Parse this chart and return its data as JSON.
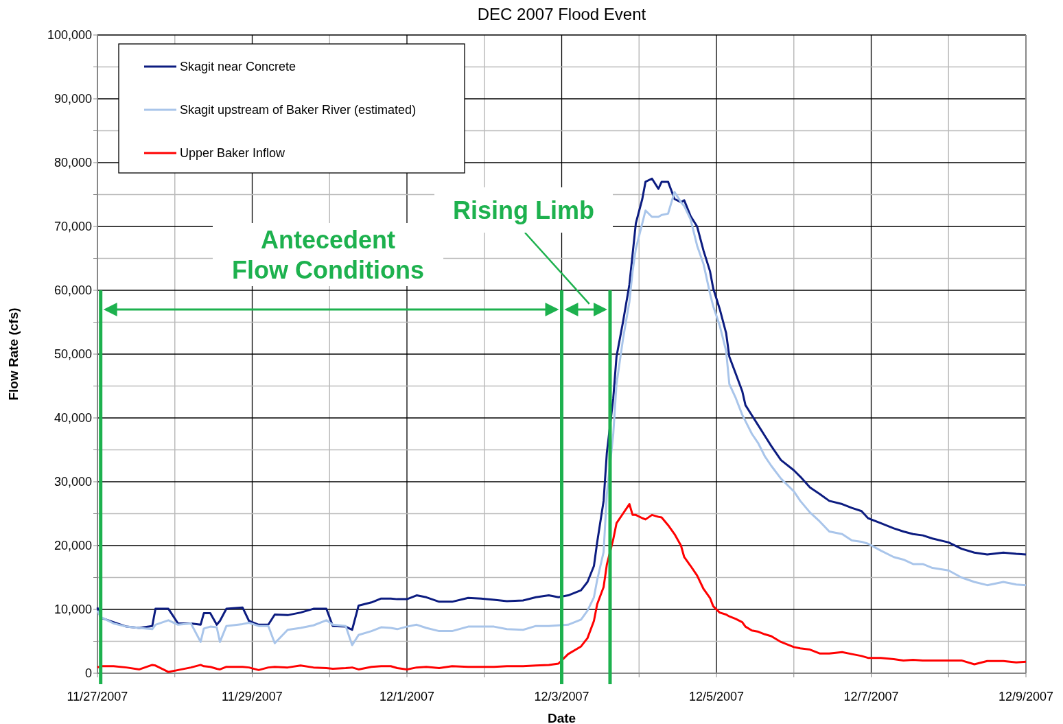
{
  "chart_data": {
    "type": "line",
    "title": "DEC 2007 Flood Event",
    "xlabel": "Date",
    "ylabel": "Flow Rate  (cfs)",
    "x": [
      "2007-11-27T00:00",
      "2007-11-27T01:00",
      "2007-11-27T05:00",
      "2007-11-27T09:00",
      "2007-11-27T13:00",
      "2007-11-27T17:00",
      "2007-11-27T18:00",
      "2007-11-27T22:00",
      "2007-11-28T01:00",
      "2007-11-28T05:00",
      "2007-11-28T08:00",
      "2007-11-28T09:00",
      "2007-11-28T11:00",
      "2007-11-28T13:00",
      "2007-11-28T14:00",
      "2007-11-28T16:00",
      "2007-11-28T21:00",
      "2007-11-28T23:00",
      "2007-11-29T02:00",
      "2007-11-29T05:00",
      "2007-11-29T07:00",
      "2007-11-29T11:00",
      "2007-11-29T15:00",
      "2007-11-29T19:00",
      "2007-11-29T23:00",
      "2007-11-30T01:00",
      "2007-11-30T05:00",
      "2007-11-30T07:00",
      "2007-11-30T09:00",
      "2007-11-30T13:00",
      "2007-11-30T16:00",
      "2007-11-30T19:00",
      "2007-11-30T21:00",
      "2007-12-01T00:00",
      "2007-12-01T03:00",
      "2007-12-01T06:00",
      "2007-12-01T10:00",
      "2007-12-01T14:00",
      "2007-12-01T19:00",
      "2007-12-01T23:00",
      "2007-12-02T03:00",
      "2007-12-02T07:00",
      "2007-12-02T12:00",
      "2007-12-02T16:00",
      "2007-12-02T20:00",
      "2007-12-02T23:00",
      "2007-12-03T02:00",
      "2007-12-03T06:00",
      "2007-12-03T08:00",
      "2007-12-03T10:00",
      "2007-12-03T11:00",
      "2007-12-03T13:00",
      "2007-12-03T14:00",
      "2007-12-03T16:00",
      "2007-12-03T17:00",
      "2007-12-03T19:00",
      "2007-12-03T21:00",
      "2007-12-03T22:00",
      "2007-12-03T23:00",
      "2007-12-04T01:00",
      "2007-12-04T02:00",
      "2007-12-04T04:00",
      "2007-12-04T06:00",
      "2007-12-04T07:00",
      "2007-12-04T09:00",
      "2007-12-04T11:00",
      "2007-12-04T13:00",
      "2007-12-04T14:00",
      "2007-12-04T16:00",
      "2007-12-04T18:00",
      "2007-12-04T20:00",
      "2007-12-04T22:00",
      "2007-12-04T23:00",
      "2007-12-05T01:00",
      "2007-12-05T03:00",
      "2007-12-05T04:00",
      "2007-12-05T06:00",
      "2007-12-05T08:00",
      "2007-12-05T09:00",
      "2007-12-05T11:00",
      "2007-12-05T13:00",
      "2007-12-05T15:00",
      "2007-12-05T17:00",
      "2007-12-05T20:00",
      "2007-12-06T00:00",
      "2007-12-06T02:00",
      "2007-12-06T05:00",
      "2007-12-06T08:00",
      "2007-12-06T11:00",
      "2007-12-06T15:00",
      "2007-12-06T18:00",
      "2007-12-06T21:00",
      "2007-12-06T23:00",
      "2007-12-07T03:00",
      "2007-12-07T07:00",
      "2007-12-07T10:00",
      "2007-12-07T13:00",
      "2007-12-07T16:00",
      "2007-12-07T19:00",
      "2007-12-08T00:00",
      "2007-12-08T04:00",
      "2007-12-08T08:00",
      "2007-12-08T12:00",
      "2007-12-08T17:00",
      "2007-12-08T21:00",
      "2007-12-09T00:00"
    ],
    "series": [
      {
        "name": "Skagit near Concrete",
        "color": "#0c1c80",
        "values": [
          10300,
          8700,
          8000,
          7300,
          7100,
          7400,
          10100,
          10100,
          7800,
          7800,
          7600,
          9400,
          9400,
          7600,
          8200,
          10100,
          10300,
          8200,
          7600,
          7600,
          9200,
          9100,
          9500,
          10100,
          10100,
          7400,
          7300,
          6800,
          10600,
          11100,
          11700,
          11700,
          11600,
          11600,
          12200,
          11900,
          11200,
          11200,
          11800,
          11700,
          11500,
          11300,
          11400,
          11900,
          12200,
          11900,
          12200,
          13000,
          14300,
          16800,
          20500,
          27000,
          34500,
          43100,
          49600,
          55000,
          60900,
          65700,
          70500,
          74300,
          77000,
          77500,
          75900,
          77000,
          77000,
          74300,
          73800,
          74100,
          71600,
          70000,
          66200,
          63000,
          60300,
          57100,
          53300,
          49600,
          46900,
          44200,
          42000,
          40400,
          38800,
          37200,
          35600,
          33400,
          31800,
          30800,
          29100,
          28100,
          27000,
          26500,
          25900,
          25400,
          24300,
          23500,
          22700,
          22200,
          21800,
          21600,
          21100,
          20500,
          19500,
          18900,
          18600,
          18900,
          18700,
          18600
        ]
      },
      {
        "name": "Skagit upstream of Baker  River (estimated)",
        "color": "#a9c5ea",
        "values": [
          9800,
          8800,
          7800,
          7300,
          7100,
          6900,
          7600,
          8300,
          7600,
          7800,
          4900,
          7000,
          7300,
          7200,
          4900,
          7400,
          7700,
          7900,
          7400,
          7400,
          4700,
          6800,
          7100,
          7500,
          8300,
          7600,
          7400,
          4400,
          6000,
          6600,
          7200,
          7100,
          6900,
          7300,
          7600,
          7100,
          6600,
          6600,
          7300,
          7300,
          7300,
          6900,
          6800,
          7400,
          7400,
          7500,
          7600,
          8400,
          9800,
          11900,
          14600,
          19000,
          28000,
          37500,
          45300,
          52300,
          58200,
          63000,
          66500,
          70500,
          72500,
          71500,
          71500,
          71800,
          72000,
          75400,
          73800,
          73200,
          71100,
          67000,
          64100,
          59500,
          57500,
          54500,
          50500,
          45300,
          43100,
          40500,
          39500,
          37500,
          36000,
          34000,
          32500,
          30500,
          28500,
          27000,
          25200,
          23800,
          22200,
          21800,
          20800,
          20600,
          20300,
          19200,
          18200,
          17800,
          17100,
          17100,
          16500,
          16100,
          15000,
          14300,
          13800,
          14300,
          13900,
          13800
        ]
      },
      {
        "name": "Upper Baker Inflow",
        "color": "#ff0000",
        "values": [
          900,
          1100,
          1100,
          900,
          600,
          1300,
          1200,
          200,
          500,
          900,
          1300,
          1100,
          1000,
          700,
          600,
          1000,
          1000,
          900,
          500,
          900,
          1000,
          900,
          1200,
          900,
          800,
          700,
          800,
          900,
          600,
          1000,
          1100,
          1100,
          800,
          600,
          900,
          1000,
          800,
          1100,
          1000,
          1000,
          1000,
          1100,
          1100,
          1200,
          1300,
          1500,
          3000,
          4200,
          5500,
          8200,
          10800,
          13500,
          17000,
          21000,
          23500,
          25000,
          26500,
          24800,
          24800,
          24300,
          24100,
          24800,
          24500,
          24400,
          23200,
          21800,
          20000,
          18200,
          16800,
          15300,
          13200,
          11800,
          10500,
          9500,
          9200,
          8900,
          8500,
          8000,
          7300,
          6700,
          6500,
          6100,
          5800,
          4900,
          4100,
          3900,
          3700,
          3100,
          3100,
          3300,
          3000,
          2700,
          2400,
          2400,
          2200,
          2000,
          2100,
          2000,
          2000,
          2000,
          2000,
          1400,
          1900,
          1900,
          1700,
          1800
        ]
      }
    ],
    "xlim": [
      "2007-11-27",
      "2007-12-09"
    ],
    "xticks": [
      {
        "value": "2007-11-27",
        "label": "11/27/2007"
      },
      {
        "value": "2007-11-28",
        "label": null
      },
      {
        "value": "2007-11-29",
        "label": "11/29/2007"
      },
      {
        "value": "2007-11-30",
        "label": null
      },
      {
        "value": "2007-12-01",
        "label": "12/1/2007"
      },
      {
        "value": "2007-12-02",
        "label": null
      },
      {
        "value": "2007-12-03",
        "label": "12/3/2007"
      },
      {
        "value": "2007-12-04",
        "label": null
      },
      {
        "value": "2007-12-05",
        "label": "12/5/2007"
      },
      {
        "value": "2007-12-06",
        "label": null
      },
      {
        "value": "2007-12-07",
        "label": "12/7/2007"
      },
      {
        "value": "2007-12-08",
        "label": null
      },
      {
        "value": "2007-12-09",
        "label": "12/9/2007"
      }
    ],
    "ylim": [
      0,
      100000
    ],
    "yticks": [
      {
        "value": 0,
        "label": "0"
      },
      {
        "value": 5000,
        "label": null
      },
      {
        "value": 10000,
        "label": "10,000"
      },
      {
        "value": 15000,
        "label": null
      },
      {
        "value": 20000,
        "label": "20,000"
      },
      {
        "value": 25000,
        "label": null
      },
      {
        "value": 30000,
        "label": "30,000"
      },
      {
        "value": 35000,
        "label": null
      },
      {
        "value": 40000,
        "label": "40,000"
      },
      {
        "value": 45000,
        "label": null
      },
      {
        "value": 50000,
        "label": "50,000"
      },
      {
        "value": 55000,
        "label": null
      },
      {
        "value": 60000,
        "label": "60,000"
      },
      {
        "value": 65000,
        "label": null
      },
      {
        "value": 70000,
        "label": "70,000"
      },
      {
        "value": 75000,
        "label": null
      },
      {
        "value": 80000,
        "label": "80,000"
      },
      {
        "value": 85000,
        "label": null
      },
      {
        "value": 90000,
        "label": "90,000"
      },
      {
        "value": 95000,
        "label": null
      },
      {
        "value": 100000,
        "label": "100,000"
      }
    ],
    "grid": true,
    "legend": "top left",
    "marker": "none",
    "line_style": "solid",
    "ref_lines": [
      {
        "axis": "x",
        "value": "2007-11-27T01:00",
        "color": "#1db14e"
      },
      {
        "axis": "x",
        "value": "2007-12-03T00:00",
        "color": "#1db14e"
      },
      {
        "axis": "x",
        "value": "2007-12-03T15:00",
        "color": "#1db14e"
      }
    ],
    "annotations": [
      "Antecedent\nFlow Conditions",
      "Rising Limb"
    ]
  }
}
